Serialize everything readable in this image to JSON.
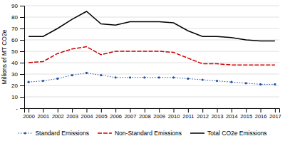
{
  "chart_data": {
    "type": "line",
    "ylabel": "Millions of MT CO2e",
    "x": [
      2000,
      2001,
      2002,
      2003,
      2004,
      2005,
      2006,
      2007,
      2008,
      2009,
      2010,
      2011,
      2012,
      2013,
      2014,
      2015,
      2016,
      2017
    ],
    "series": [
      {
        "name": "Standard Emissions",
        "color": "#2050a0",
        "marker": "point",
        "line_style": "dotted",
        "values": [
          23,
          24,
          26,
          29,
          31,
          29,
          27,
          27,
          27,
          27,
          27,
          26,
          25,
          24,
          23,
          22,
          21,
          21
        ]
      },
      {
        "name": "Non-Standard Emissions",
        "color": "#cc0000",
        "line_style": "dashed",
        "values": [
          40,
          41,
          48,
          52,
          54,
          47,
          50,
          50,
          50,
          50,
          49,
          44,
          39,
          39,
          38,
          38,
          38,
          38
        ]
      },
      {
        "name": "Total CO2e Emissions",
        "color": "#000000",
        "line_style": "solid",
        "values": [
          63,
          63,
          70,
          78,
          85,
          74,
          73,
          76,
          76,
          76,
          75,
          68,
          63,
          63,
          62,
          60,
          59,
          59
        ]
      }
    ],
    "xlim": [
      1999.7,
      2017.3
    ],
    "xticks": [
      2000,
      2001,
      2002,
      2003,
      2004,
      2005,
      2006,
      2007,
      2008,
      2009,
      2010,
      2011,
      2012,
      2013,
      2014,
      2015,
      2016,
      2017
    ],
    "ylim": [
      0,
      90
    ],
    "yticks": [
      {
        "value": 0,
        "label": "-"
      },
      10,
      20,
      30,
      40,
      50,
      60,
      70,
      80,
      90
    ],
    "grid": true,
    "legend": "bottom"
  }
}
